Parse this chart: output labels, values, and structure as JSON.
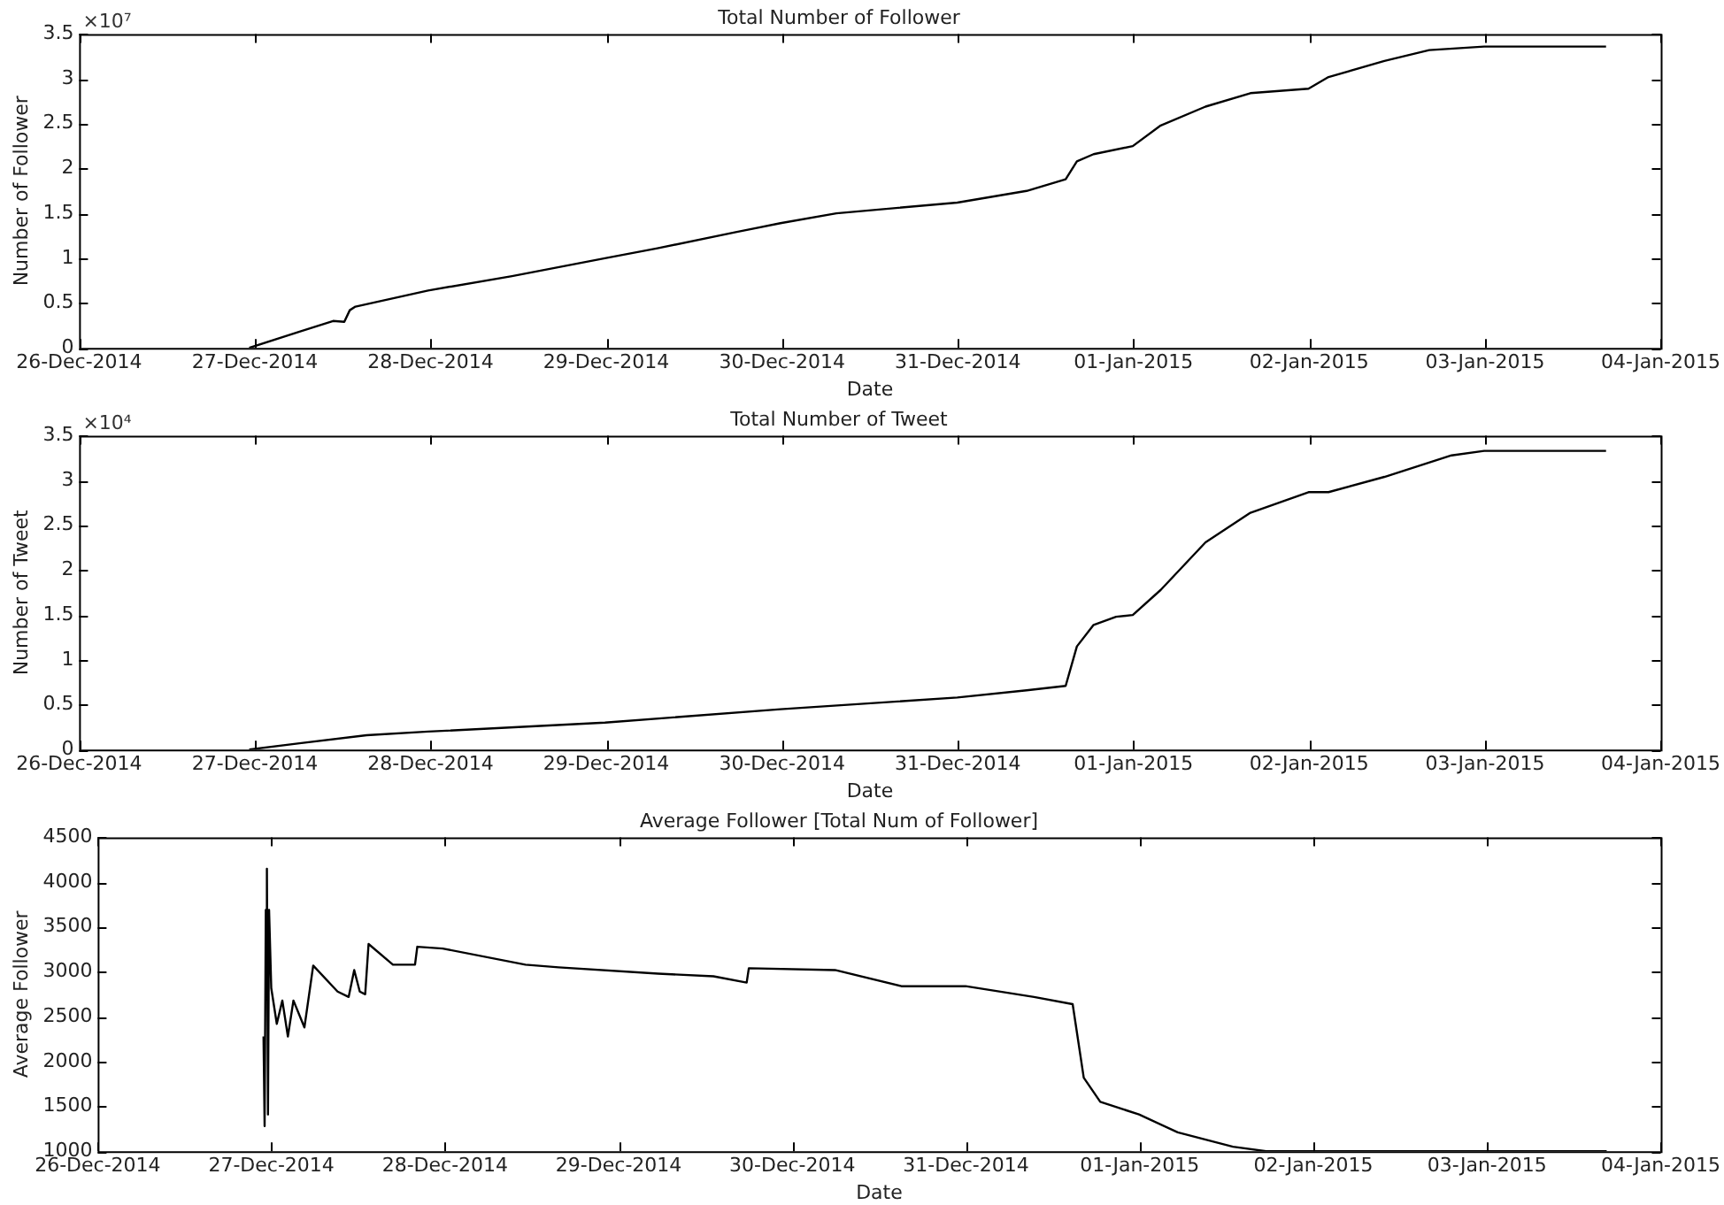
{
  "chart_data": [
    {
      "type": "line",
      "title": "Total Number of Follower",
      "xlabel": "Date",
      "ylabel": "Number of Follower",
      "annotations": [
        "×10⁷"
      ],
      "color": "#000000",
      "x": [
        "2014-12-26T23:14",
        "2014-12-27T06:06",
        "2014-12-27T10:41",
        "2014-12-27T12:13",
        "2014-12-27T12:58",
        "2014-12-27T13:44",
        "2014-12-27T23:40",
        "2014-12-28T11:07",
        "2014-12-28T23:49",
        "2014-12-29T06:59",
        "2014-12-29T17:41",
        "2014-12-29T23:47",
        "2014-12-30T07:25",
        "2014-12-30T23:56",
        "2014-12-31T09:24",
        "2014-12-31T14:44",
        "2014-12-31T16:16",
        "2014-12-31T18:33",
        "2014-12-31T23:54",
        "2015-01-01T03:43",
        "2015-01-01T09:50",
        "2015-01-01T15:58",
        "2015-01-01T23:54",
        "2015-01-02T02:38",
        "2015-01-02T10:16",
        "2015-01-02T16:23",
        "2015-01-02T23:53",
        "2015-01-03T16:32"
      ],
      "values": [
        0,
        0.18,
        0.3,
        0.29,
        0.42,
        0.46,
        0.64,
        0.8,
        1.0,
        1.11,
        1.29,
        1.39,
        1.5,
        1.62,
        1.75,
        1.88,
        2.08,
        2.16,
        2.25,
        2.48,
        2.69,
        2.84,
        2.89,
        3.02,
        3.2,
        3.32,
        3.36,
        3.36
      ],
      "xlim": [
        "2014-12-26",
        "2015-01-04"
      ],
      "xticks": [
        {
          "value": "2014-12-26",
          "label": "26-Dec-2014"
        },
        {
          "value": "2014-12-27",
          "label": "27-Dec-2014"
        },
        {
          "value": "2014-12-28",
          "label": "28-Dec-2014"
        },
        {
          "value": "2014-12-29",
          "label": "29-Dec-2014"
        },
        {
          "value": "2014-12-30",
          "label": "30-Dec-2014"
        },
        {
          "value": "2014-12-31",
          "label": "31-Dec-2014"
        },
        {
          "value": "2015-01-01",
          "label": "01-Jan-2015"
        },
        {
          "value": "2015-01-02",
          "label": "02-Jan-2015"
        },
        {
          "value": "2015-01-03",
          "label": "03-Jan-2015"
        },
        {
          "value": "2015-01-04",
          "label": "04-Jan-2015"
        }
      ],
      "ylim": [
        0,
        3.5
      ],
      "yticks": [
        0,
        0.5,
        1,
        1.5,
        2,
        2.5,
        3,
        3.5
      ]
    },
    {
      "type": "line",
      "title": "Total Number of Tweet",
      "xlabel": "Date",
      "ylabel": "Number of Tweet",
      "annotations": [
        "×10⁴"
      ],
      "color": "#000000",
      "x": [
        "2014-12-26T23:14",
        "2014-12-27T06:06",
        "2014-12-27T15:16",
        "2014-12-27T23:40",
        "2014-12-28T23:49",
        "2014-12-29T23:47",
        "2014-12-30T23:56",
        "2014-12-31T09:24",
        "2014-12-31T14:44",
        "2014-12-31T16:16",
        "2014-12-31T18:33",
        "2014-12-31T21:37",
        "2014-12-31T23:54",
        "2015-01-01T03:43",
        "2015-01-01T09:50",
        "2015-01-01T15:58",
        "2015-01-01T23:54",
        "2015-01-02T02:38",
        "2015-01-02T10:16",
        "2015-01-02T19:26",
        "2015-01-02T23:53",
        "2015-01-03T16:32"
      ],
      "values": [
        0,
        0.07,
        0.16,
        0.2,
        0.3,
        0.45,
        0.58,
        0.66,
        0.71,
        1.15,
        1.39,
        1.48,
        1.5,
        1.78,
        2.31,
        2.64,
        2.87,
        2.87,
        3.04,
        3.28,
        3.33,
        3.33
      ],
      "xlim": [
        "2014-12-26",
        "2015-01-04"
      ],
      "xticks": [
        {
          "value": "2014-12-26",
          "label": "26-Dec-2014"
        },
        {
          "value": "2014-12-27",
          "label": "27-Dec-2014"
        },
        {
          "value": "2014-12-28",
          "label": "28-Dec-2014"
        },
        {
          "value": "2014-12-29",
          "label": "29-Dec-2014"
        },
        {
          "value": "2014-12-30",
          "label": "30-Dec-2014"
        },
        {
          "value": "2014-12-31",
          "label": "31-Dec-2014"
        },
        {
          "value": "2015-01-01",
          "label": "01-Jan-2015"
        },
        {
          "value": "2015-01-02",
          "label": "02-Jan-2015"
        },
        {
          "value": "2015-01-03",
          "label": "03-Jan-2015"
        },
        {
          "value": "2015-01-04",
          "label": "04-Jan-2015"
        }
      ],
      "ylim": [
        0,
        3.5
      ],
      "yticks": [
        0,
        0.5,
        1,
        1.5,
        2,
        2.5,
        3,
        3.5
      ]
    },
    {
      "type": "line",
      "title": "Average Follower [Total Num of Follower]",
      "xlabel": "Date",
      "ylabel": "Average Follower",
      "color": "#000000",
      "x": [
        "2014-12-26T22:55",
        "2014-12-26T23:04",
        "2014-12-26T23:14",
        "2014-12-26T23:23",
        "2014-12-26T23:32",
        "2014-12-26T23:41",
        "2014-12-26T23:59",
        "2014-12-27T00:45",
        "2014-12-27T01:31",
        "2014-12-27T02:17",
        "2014-12-27T03:03",
        "2014-12-27T04:34",
        "2014-12-27T05:47",
        "2014-12-27T09:09",
        "2014-12-27T10:41",
        "2014-12-27T11:27",
        "2014-12-27T12:13",
        "2014-12-27T12:58",
        "2014-12-27T13:26",
        "2014-12-27T16:48",
        "2014-12-27T19:51",
        "2014-12-27T20:10",
        "2014-12-27T23:40",
        "2014-12-28T11:07",
        "2014-12-28T15:42",
        "2014-12-29T05:27",
        "2014-12-29T13:06",
        "2014-12-29T17:41",
        "2014-12-29T17:59",
        "2014-12-30T05:54",
        "2014-12-30T15:04",
        "2014-12-30T23:56",
        "2014-12-31T09:24",
        "2014-12-31T14:44",
        "2014-12-31T16:16",
        "2014-12-31T18:33",
        "2014-12-31T23:54",
        "2015-01-01T05:15",
        "2015-01-01T12:53",
        "2015-01-01T17:28",
        "2015-01-03T16:32"
      ],
      "values": [
        2280,
        1280,
        3690,
        4150,
        1410,
        3690,
        2820,
        2420,
        2680,
        2280,
        2680,
        2380,
        3070,
        2780,
        2720,
        3020,
        2780,
        2750,
        3310,
        3080,
        3080,
        3280,
        3260,
        3080,
        3050,
        2980,
        2950,
        2880,
        3040,
        3020,
        2840,
        2840,
        2720,
        2640,
        1820,
        1550,
        1410,
        1210,
        1050,
        1000,
        1000
      ],
      "xlim": [
        "2014-12-26",
        "2015-01-04"
      ],
      "xticks": [
        {
          "value": "2014-12-26",
          "label": "26-Dec-2014"
        },
        {
          "value": "2014-12-27",
          "label": "27-Dec-2014"
        },
        {
          "value": "2014-12-28",
          "label": "28-Dec-2014"
        },
        {
          "value": "2014-12-29",
          "label": "29-Dec-2014"
        },
        {
          "value": "2014-12-30",
          "label": "30-Dec-2014"
        },
        {
          "value": "2014-12-31",
          "label": "31-Dec-2014"
        },
        {
          "value": "2015-01-01",
          "label": "01-Jan-2015"
        },
        {
          "value": "2015-01-02",
          "label": "02-Jan-2015"
        },
        {
          "value": "2015-01-03",
          "label": "03-Jan-2015"
        },
        {
          "value": "2015-01-04",
          "label": "04-Jan-2015"
        }
      ],
      "ylim": [
        1000,
        4500
      ],
      "yticks": [
        1000,
        1500,
        2000,
        2500,
        3000,
        3500,
        4000,
        4500
      ]
    }
  ]
}
